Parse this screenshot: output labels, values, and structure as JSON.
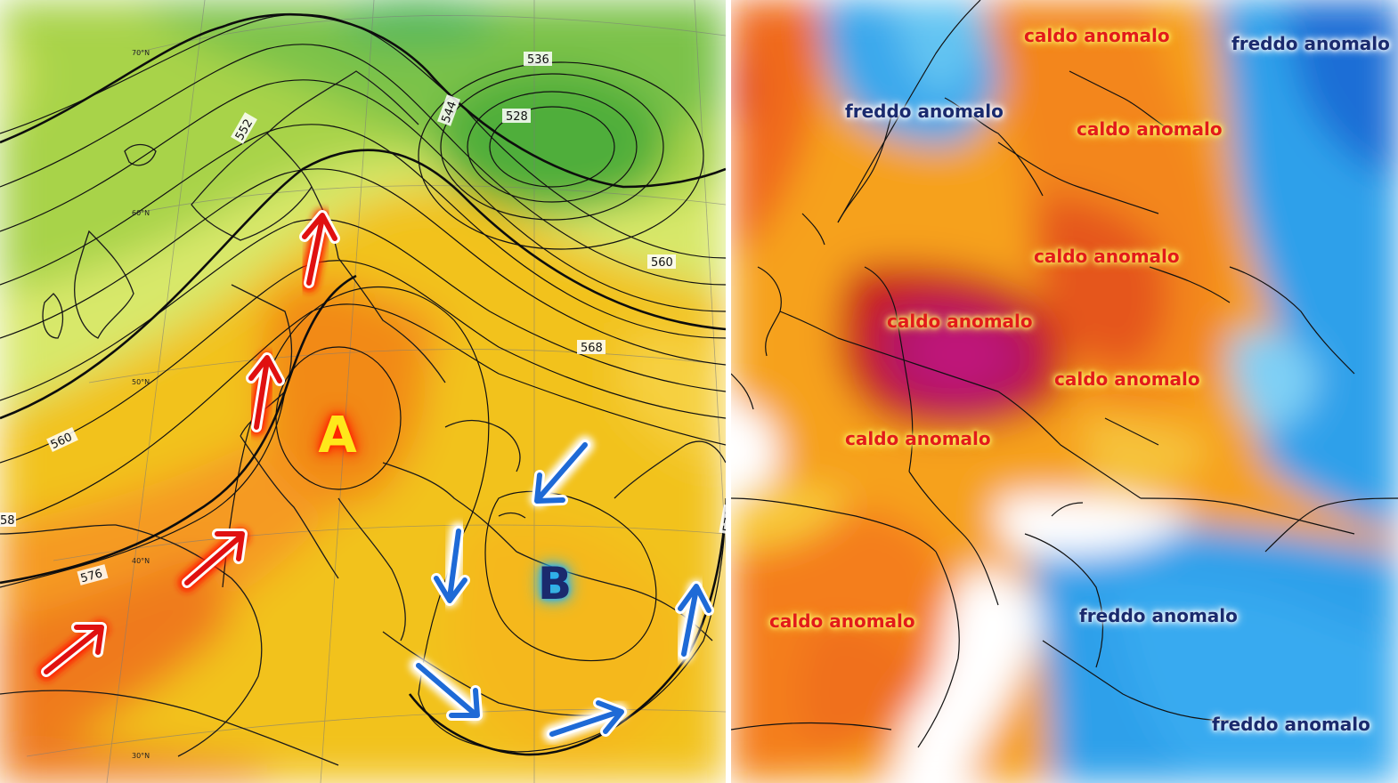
{
  "left_map": {
    "high_pressure_label": "A",
    "low_pressure_label": "B",
    "isoline_labels": [
      "536",
      "528",
      "544",
      "552",
      "560",
      "568",
      "576",
      "560",
      "576",
      "58"
    ],
    "latitude_labels": [
      "70°N",
      "60°N",
      "50°N",
      "40°N",
      "30°N"
    ],
    "warm_arrow_color": "#e01010",
    "cold_arrow_color": "#1e6ad6"
  },
  "right_map": {
    "anomaly_labels": [
      "caldo anomalo",
      "freddo anomalo",
      "freddo anomalo",
      "caldo anomalo",
      "caldo anomalo",
      "caldo anomalo",
      "caldo anomalo",
      "caldo anomalo",
      "caldo anomalo",
      "freddo anomalo",
      "freddo anomalo"
    ],
    "warm_text_color": "#e21a1a",
    "cold_text_color": "#1a2a6e"
  }
}
